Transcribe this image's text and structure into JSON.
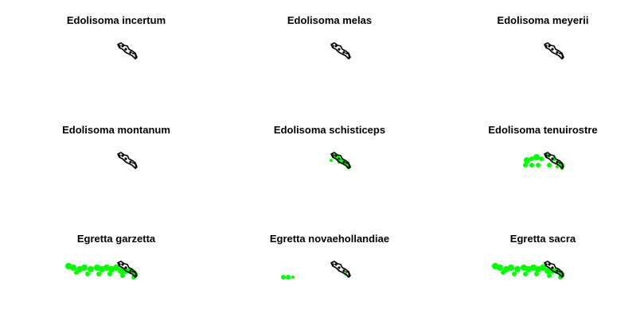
{
  "panels": [
    {
      "title": "Edolisoma incertum",
      "range": "none"
    },
    {
      "title": "Edolisoma melas",
      "range": "none"
    },
    {
      "title": "Edolisoma meyerii",
      "range": "none"
    },
    {
      "title": "Edolisoma montanum",
      "range": "none"
    },
    {
      "title": "Edolisoma schisticeps",
      "range": "new-guinea"
    },
    {
      "title": "Edolisoma tenuirostre",
      "range": "new-guinea-north-australia"
    },
    {
      "title": "Egretta garzetta",
      "range": "wide"
    },
    {
      "title": "Egretta novaehollandiae",
      "range": "partial"
    },
    {
      "title": "Egretta sacra",
      "range": "wide"
    }
  ],
  "colors": {
    "background": "#ffffff",
    "outline": "#000000",
    "range_fill": "#00ff00"
  }
}
